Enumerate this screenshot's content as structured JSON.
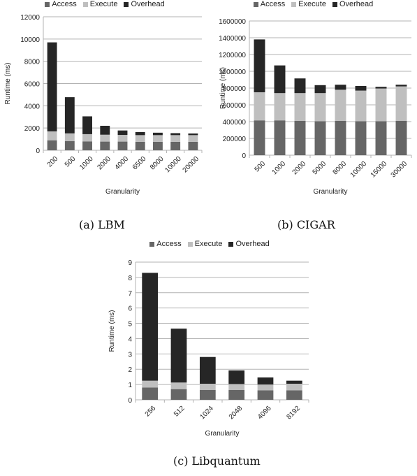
{
  "legend": [
    {
      "label": "Access",
      "color": "#666666"
    },
    {
      "label": "Execute",
      "color": "#bfbfbf"
    },
    {
      "label": "Overhead",
      "color": "#262626"
    }
  ],
  "captions": [
    "(a) LBM",
    "(b) CIGAR",
    "(c) Libquantum"
  ],
  "chart_data": [
    {
      "type": "bar",
      "stacked": true,
      "xlabel": "Granularity",
      "ylabel": "Runtime (ms)",
      "ylim": [
        0,
        12000
      ],
      "yticks": [
        0,
        2000,
        4000,
        6000,
        8000,
        10000,
        12000
      ],
      "ytick_labels": [
        "0",
        "2000",
        "4000",
        "6000",
        "8000",
        "10000",
        "12000"
      ],
      "grid": true,
      "legend_position": "top",
      "categories": [
        "200",
        "500",
        "1000",
        "2000",
        "4000",
        "6500",
        "8000",
        "10000",
        "20000"
      ],
      "series": [
        {
          "name": "Access",
          "values": [
            900,
            820,
            800,
            780,
            780,
            760,
            760,
            760,
            760
          ]
        },
        {
          "name": "Execute",
          "values": [
            800,
            700,
            650,
            620,
            600,
            600,
            600,
            600,
            600
          ]
        },
        {
          "name": "Overhead",
          "values": [
            8000,
            3250,
            1600,
            800,
            400,
            280,
            220,
            180,
            150
          ]
        }
      ]
    },
    {
      "type": "bar",
      "stacked": true,
      "xlabel": "Granularity",
      "ylabel": "Runtime (ms)",
      "ylim": [
        0,
        1600000
      ],
      "yticks": [
        0,
        200000,
        400000,
        600000,
        800000,
        1000000,
        1200000,
        1400000,
        1600000
      ],
      "ytick_labels": [
        "0",
        "200000",
        "400000",
        "600000",
        "800000",
        "1000000",
        "1200000",
        "1400000",
        "1600000"
      ],
      "grid": true,
      "legend_position": "top",
      "categories": [
        "500",
        "1000",
        "2000",
        "5000",
        "8000",
        "10000",
        "15000",
        "30000"
      ],
      "series": [
        {
          "name": "Access",
          "values": [
            415000,
            415000,
            410000,
            405000,
            410000,
            405000,
            405000,
            410000
          ]
        },
        {
          "name": "Execute",
          "values": [
            335000,
            325000,
            330000,
            335000,
            370000,
            365000,
            390000,
            410000
          ]
        },
        {
          "name": "Overhead",
          "values": [
            630000,
            330000,
            175000,
            95000,
            60000,
            55000,
            20000,
            20000
          ]
        }
      ]
    },
    {
      "type": "bar",
      "stacked": true,
      "xlabel": "Granularity",
      "ylabel": "Runtime (ms)",
      "ylim": [
        0,
        9
      ],
      "yticks": [
        0,
        1,
        2,
        3,
        4,
        5,
        6,
        7,
        8,
        9
      ],
      "ytick_labels": [
        "0",
        "1",
        "2",
        "3",
        "4",
        "5",
        "6",
        "7",
        "8",
        "9"
      ],
      "grid": true,
      "legend_position": "top",
      "categories": [
        "256",
        "512",
        "1024",
        "2048",
        "4096",
        "8192"
      ],
      "series": [
        {
          "name": "Access",
          "values": [
            0.8,
            0.7,
            0.65,
            0.65,
            0.62,
            0.62
          ]
        },
        {
          "name": "Execute",
          "values": [
            0.45,
            0.43,
            0.4,
            0.38,
            0.38,
            0.43
          ]
        },
        {
          "name": "Overhead",
          "values": [
            7.05,
            3.52,
            1.75,
            0.89,
            0.46,
            0.2
          ]
        }
      ]
    }
  ]
}
